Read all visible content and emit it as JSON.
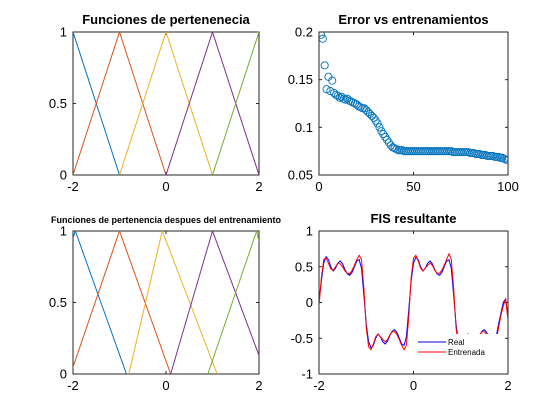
{
  "figure": {
    "background": "#ffffff"
  },
  "chart_data": [
    {
      "type": "line",
      "title": "Funciones de pertenenecia",
      "xlabel": "",
      "ylabel": "",
      "xlim": [
        -2,
        2
      ],
      "ylim": [
        0,
        1
      ],
      "xticks": [
        -2,
        0,
        2
      ],
      "yticks": [
        0,
        0.5,
        1
      ],
      "xtick_labels": [
        "-2",
        "0",
        "2"
      ],
      "ytick_labels": [
        "0",
        "0.5",
        "1"
      ],
      "grid": false,
      "series": [
        {
          "color": "#0072BD",
          "x": [
            -3,
            -2,
            -1
          ],
          "y": [
            0,
            1,
            0
          ]
        },
        {
          "color": "#D95319",
          "x": [
            -2,
            -1,
            0
          ],
          "y": [
            0,
            1,
            0
          ]
        },
        {
          "color": "#EDB120",
          "x": [
            -1,
            0,
            1
          ],
          "y": [
            0,
            1,
            0
          ]
        },
        {
          "color": "#7E2F8E",
          "x": [
            0,
            1,
            2
          ],
          "y": [
            0,
            1,
            0
          ]
        },
        {
          "color": "#77AC30",
          "x": [
            1,
            2,
            3
          ],
          "y": [
            0,
            1,
            0
          ]
        }
      ]
    },
    {
      "type": "scatter",
      "title": "Error vs entrenamientos",
      "xlabel": "",
      "ylabel": "",
      "xlim": [
        0,
        100
      ],
      "ylim": [
        0.05,
        0.2
      ],
      "xticks": [
        0,
        50,
        100
      ],
      "yticks": [
        0.05,
        0.1,
        0.15,
        0.2
      ],
      "xtick_labels": [
        "0",
        "50",
        "100"
      ],
      "ytick_labels": [
        "0.05",
        "0.1",
        "0.15",
        "0.2"
      ],
      "grid": false,
      "marker": "circle-open",
      "series": [
        {
          "color": "#0072BD",
          "x": [
            1,
            2,
            3,
            4,
            5,
            6,
            7,
            8,
            9,
            10,
            11,
            12,
            13,
            14,
            15,
            16,
            17,
            18,
            19,
            20,
            21,
            22,
            23,
            24,
            25,
            26,
            27,
            28,
            29,
            30,
            31,
            32,
            33,
            34,
            35,
            36,
            37,
            38,
            39,
            40,
            41,
            42,
            43,
            44,
            45,
            46,
            47,
            48,
            49,
            50,
            51,
            52,
            53,
            54,
            55,
            56,
            57,
            58,
            59,
            60,
            61,
            62,
            63,
            64,
            65,
            66,
            67,
            68,
            69,
            70,
            71,
            72,
            73,
            74,
            75,
            76,
            77,
            78,
            79,
            80,
            81,
            82,
            83,
            84,
            85,
            86,
            87,
            88,
            89,
            90,
            91,
            92,
            93,
            94,
            95,
            96,
            97,
            98,
            99,
            100
          ],
          "y": [
            0.197,
            0.193,
            0.165,
            0.14,
            0.153,
            0.138,
            0.149,
            0.136,
            0.134,
            0.133,
            0.131,
            0.132,
            0.13,
            0.129,
            0.13,
            0.128,
            0.127,
            0.126,
            0.125,
            0.124,
            0.122,
            0.121,
            0.12,
            0.12,
            0.118,
            0.116,
            0.114,
            0.112,
            0.11,
            0.107,
            0.104,
            0.1,
            0.096,
            0.093,
            0.09,
            0.087,
            0.084,
            0.081,
            0.079,
            0.078,
            0.077,
            0.076,
            0.076,
            0.076,
            0.075,
            0.075,
            0.075,
            0.075,
            0.075,
            0.075,
            0.075,
            0.075,
            0.075,
            0.075,
            0.075,
            0.075,
            0.075,
            0.075,
            0.075,
            0.075,
            0.075,
            0.075,
            0.075,
            0.075,
            0.075,
            0.075,
            0.075,
            0.075,
            0.075,
            0.075,
            0.074,
            0.074,
            0.074,
            0.074,
            0.074,
            0.074,
            0.074,
            0.074,
            0.074,
            0.073,
            0.073,
            0.073,
            0.072,
            0.072,
            0.072,
            0.071,
            0.071,
            0.071,
            0.07,
            0.07,
            0.07,
            0.07,
            0.069,
            0.069,
            0.069,
            0.068,
            0.068,
            0.067,
            0.066,
            0.066
          ]
        }
      ]
    },
    {
      "type": "line",
      "title": "Funciones de pertenencia despues del entrenamiento",
      "xlabel": "",
      "ylabel": "",
      "xlim": [
        -2,
        2
      ],
      "ylim": [
        0,
        1
      ],
      "xticks": [
        -2,
        0,
        2
      ],
      "yticks": [
        0,
        0.5,
        1
      ],
      "xtick_labels": [
        "-2",
        "0",
        "2"
      ],
      "ytick_labels": [
        "0",
        "0.5",
        "1"
      ],
      "grid": false,
      "series": [
        {
          "color": "#0072BD",
          "x": [
            -2.95,
            -1.95,
            -0.85
          ],
          "y": [
            0,
            1,
            0
          ]
        },
        {
          "color": "#D95319",
          "x": [
            -2.05,
            -1.0,
            0.1
          ],
          "y": [
            0,
            1,
            0
          ]
        },
        {
          "color": "#EDB120",
          "x": [
            -0.8,
            -0.08,
            1.1
          ],
          "y": [
            0,
            1,
            0
          ]
        },
        {
          "color": "#7E2F8E",
          "x": [
            0.1,
            1.0,
            2.0
          ],
          "y": [
            0,
            1,
            0.13
          ]
        },
        {
          "color": "#77AC30",
          "x": [
            0.9,
            1.95,
            2.0
          ],
          "y": [
            0,
            1,
            0.93
          ]
        }
      ]
    },
    {
      "type": "line",
      "title": "FIS resultante",
      "xlabel": "",
      "ylabel": "",
      "xlim": [
        -2,
        2
      ],
      "ylim": [
        -1,
        1
      ],
      "xticks": [
        -2,
        0,
        2
      ],
      "yticks": [
        -1,
        -0.5,
        0,
        0.5,
        1
      ],
      "xtick_labels": [
        "-2",
        "0",
        "2"
      ],
      "ytick_labels": [
        "-1",
        "-0.5",
        "0",
        "0.5",
        "1"
      ],
      "grid": false,
      "legend": {
        "position": "bottom-right",
        "entries": [
          "Real",
          "Entrenada"
        ]
      },
      "series": [
        {
          "name": "Real",
          "color": "#0000FF",
          "x": [
            -2.0,
            -1.95,
            -1.9,
            -1.85,
            -1.8,
            -1.75,
            -1.7,
            -1.65,
            -1.6,
            -1.55,
            -1.5,
            -1.45,
            -1.4,
            -1.35,
            -1.3,
            -1.25,
            -1.2,
            -1.15,
            -1.1,
            -1.05,
            -1.0,
            -0.95,
            -0.9,
            -0.85,
            -0.8,
            -0.75,
            -0.7,
            -0.65,
            -0.6,
            -0.55,
            -0.5,
            -0.45,
            -0.4,
            -0.35,
            -0.3,
            -0.25,
            -0.2,
            -0.15,
            -0.1,
            -0.05,
            0.0,
            0.05,
            0.1,
            0.15,
            0.2,
            0.25,
            0.3,
            0.35,
            0.4,
            0.45,
            0.5,
            0.55,
            0.6,
            0.65,
            0.7,
            0.75,
            0.8,
            0.85,
            0.9,
            0.95,
            1.0,
            1.05,
            1.1,
            1.15,
            1.2,
            1.25,
            1.3,
            1.35,
            1.4,
            1.45,
            1.5,
            1.55,
            1.6,
            1.65,
            1.7,
            1.75,
            1.8,
            1.85,
            1.9,
            1.95,
            2.0
          ],
          "y": [
            0.0,
            0.3,
            0.55,
            0.64,
            0.6,
            0.5,
            0.44,
            0.48,
            0.55,
            0.58,
            0.54,
            0.46,
            0.4,
            0.38,
            0.42,
            0.5,
            0.58,
            0.6,
            0.48,
            0.1,
            -0.3,
            -0.55,
            -0.63,
            -0.6,
            -0.5,
            -0.44,
            -0.48,
            -0.55,
            -0.58,
            -0.54,
            -0.46,
            -0.4,
            -0.38,
            -0.42,
            -0.5,
            -0.58,
            -0.6,
            -0.48,
            -0.1,
            0.3,
            0.55,
            0.63,
            0.6,
            0.5,
            0.44,
            0.48,
            0.55,
            0.58,
            0.54,
            0.46,
            0.4,
            0.38,
            0.42,
            0.5,
            0.58,
            0.6,
            0.48,
            0.1,
            -0.3,
            -0.55,
            -0.63,
            -0.6,
            -0.5,
            -0.44,
            -0.48,
            -0.55,
            -0.58,
            -0.54,
            -0.46,
            -0.4,
            -0.38,
            -0.42,
            -0.5,
            -0.58,
            -0.6,
            -0.48,
            -0.3,
            -0.15,
            0.0,
            0.05,
            -0.2
          ]
        },
        {
          "name": "Entrenada",
          "color": "#FF0000",
          "x": [
            -2.0,
            -1.95,
            -1.9,
            -1.85,
            -1.8,
            -1.75,
            -1.7,
            -1.65,
            -1.6,
            -1.55,
            -1.5,
            -1.45,
            -1.4,
            -1.35,
            -1.3,
            -1.25,
            -1.2,
            -1.15,
            -1.1,
            -1.05,
            -1.0,
            -0.95,
            -0.9,
            -0.85,
            -0.8,
            -0.75,
            -0.7,
            -0.65,
            -0.6,
            -0.55,
            -0.5,
            -0.45,
            -0.4,
            -0.35,
            -0.3,
            -0.25,
            -0.2,
            -0.15,
            -0.1,
            -0.05,
            0.0,
            0.05,
            0.1,
            0.15,
            0.2,
            0.25,
            0.3,
            0.35,
            0.4,
            0.45,
            0.5,
            0.55,
            0.6,
            0.65,
            0.7,
            0.75,
            0.8,
            0.85,
            0.9,
            0.95,
            1.0,
            1.05,
            1.1,
            1.15,
            1.2,
            1.25,
            1.3,
            1.35,
            1.4,
            1.45,
            1.5,
            1.55,
            1.6,
            1.65,
            1.7,
            1.75,
            1.8,
            1.85,
            1.9,
            1.95,
            2.0
          ],
          "y": [
            -0.05,
            0.35,
            0.6,
            0.62,
            0.55,
            0.47,
            0.45,
            0.5,
            0.55,
            0.54,
            0.5,
            0.44,
            0.41,
            0.4,
            0.45,
            0.52,
            0.6,
            0.66,
            0.6,
            0.2,
            -0.35,
            -0.62,
            -0.66,
            -0.58,
            -0.48,
            -0.44,
            -0.48,
            -0.52,
            -0.55,
            -0.52,
            -0.45,
            -0.41,
            -0.41,
            -0.45,
            -0.52,
            -0.6,
            -0.66,
            -0.6,
            -0.2,
            0.35,
            0.62,
            0.66,
            0.58,
            0.48,
            0.44,
            0.48,
            0.52,
            0.55,
            0.52,
            0.45,
            0.41,
            0.41,
            0.45,
            0.52,
            0.6,
            0.68,
            0.6,
            0.2,
            -0.35,
            -0.62,
            -0.66,
            -0.58,
            -0.48,
            -0.44,
            -0.48,
            -0.52,
            -0.55,
            -0.52,
            -0.45,
            -0.41,
            -0.41,
            -0.45,
            -0.52,
            -0.6,
            -0.65,
            -0.55,
            -0.35,
            -0.18,
            -0.05,
            0.05,
            -0.25
          ]
        }
      ]
    }
  ]
}
